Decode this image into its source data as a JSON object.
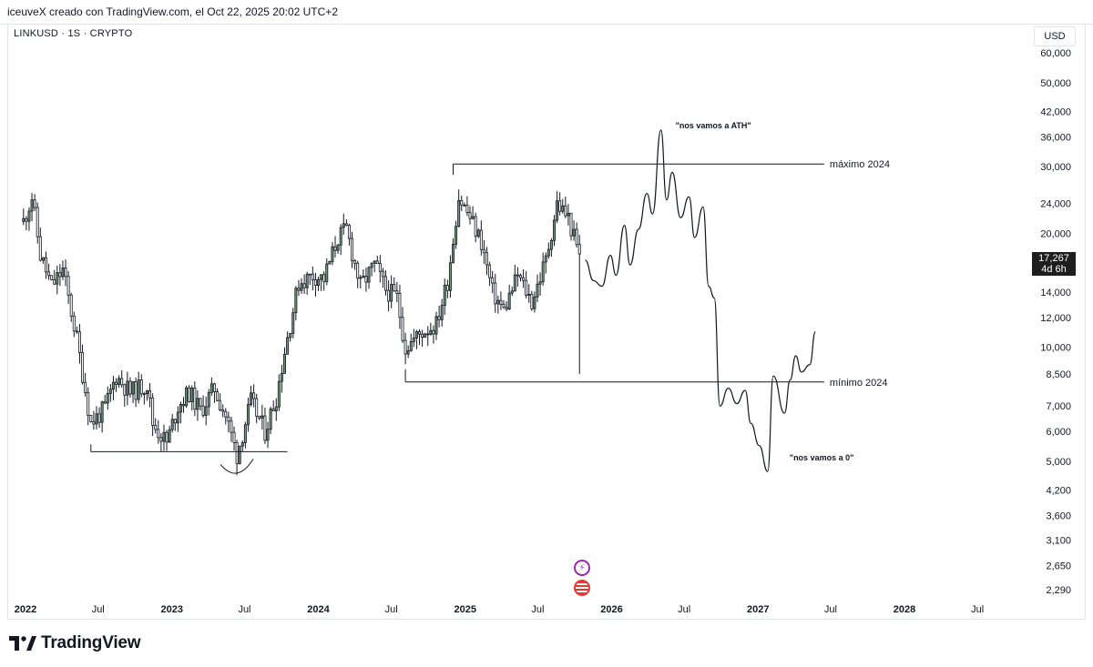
{
  "header": {
    "attribution": "iceuveX creado con TradingView.com, el Oct 22, 2025 20:02 UTC+2"
  },
  "symbol_label": "LINKUSD · 1S · CRYPTO",
  "currency_button": "USD",
  "current_price": {
    "value": "17,267",
    "countdown": "4d 6h"
  },
  "brand": {
    "name": "TradingView"
  },
  "colors": {
    "up_candle": "#6f9a78",
    "down_candle": "#ffffff",
    "wick": "#131722",
    "drawing": "#131722",
    "event_icon_purple": "#9c27b0",
    "event_icon_red": "#e53935"
  },
  "icons": [
    "lightning-event-icon",
    "us-flag-event-icon",
    "tradingview-logo-icon"
  ],
  "chart_data": {
    "type": "candlestick",
    "scale": "log",
    "y_ticks": [
      "60,000",
      "50,000",
      "42,000",
      "36,000",
      "30,000",
      "24,000",
      "20,000",
      "14,000",
      "12,000",
      "10,000",
      "8,500",
      "7,000",
      "6,000",
      "5,000",
      "4,200",
      "3,600",
      "3,100",
      "2,650",
      "2,290"
    ],
    "y_tick_values": [
      60000,
      50000,
      42000,
      36000,
      30000,
      24000,
      20000,
      14000,
      12000,
      10000,
      8500,
      7000,
      6000,
      5000,
      4200,
      3600,
      3100,
      2650,
      2290
    ],
    "x_ticks": [
      {
        "label": "2022",
        "bold": true,
        "date": "2022-01-01"
      },
      {
        "label": "Jul",
        "bold": false,
        "date": "2022-07-01"
      },
      {
        "label": "2023",
        "bold": true,
        "date": "2023-01-01"
      },
      {
        "label": "Jul",
        "bold": false,
        "date": "2023-07-01"
      },
      {
        "label": "2024",
        "bold": true,
        "date": "2024-01-01"
      },
      {
        "label": "Jul",
        "bold": false,
        "date": "2024-07-01"
      },
      {
        "label": "2025",
        "bold": true,
        "date": "2025-01-01"
      },
      {
        "label": "Jul",
        "bold": false,
        "date": "2025-07-01"
      },
      {
        "label": "2026",
        "bold": true,
        "date": "2026-01-01"
      },
      {
        "label": "Jul",
        "bold": false,
        "date": "2026-07-01"
      },
      {
        "label": "2027",
        "bold": true,
        "date": "2027-01-01"
      },
      {
        "label": "Jul",
        "bold": false,
        "date": "2027-07-01"
      },
      {
        "label": "2028",
        "bold": true,
        "date": "2028-01-01"
      },
      {
        "label": "Jul",
        "bold": false,
        "date": "2028-07-01"
      }
    ],
    "candle_anchors": [
      {
        "date": "2021-12-27",
        "price": 21500
      },
      {
        "date": "2022-01-17",
        "price": 25000
      },
      {
        "date": "2022-02-07",
        "price": 17500
      },
      {
        "date": "2022-03-07",
        "price": 14500
      },
      {
        "date": "2022-04-04",
        "price": 16000
      },
      {
        "date": "2022-05-09",
        "price": 10500
      },
      {
        "date": "2022-06-13",
        "price": 6300
      },
      {
        "date": "2022-07-18",
        "price": 6900
      },
      {
        "date": "2022-08-15",
        "price": 8400
      },
      {
        "date": "2022-09-19",
        "price": 7600
      },
      {
        "date": "2022-10-31",
        "price": 8000
      },
      {
        "date": "2022-11-14",
        "price": 6300
      },
      {
        "date": "2022-12-19",
        "price": 5600
      },
      {
        "date": "2023-01-16",
        "price": 7000
      },
      {
        "date": "2023-02-13",
        "price": 7600
      },
      {
        "date": "2023-03-13",
        "price": 6800
      },
      {
        "date": "2023-04-17",
        "price": 7800
      },
      {
        "date": "2023-05-15",
        "price": 6600
      },
      {
        "date": "2023-06-12",
        "price": 5200
      },
      {
        "date": "2023-07-17",
        "price": 7200
      },
      {
        "date": "2023-08-21",
        "price": 6000
      },
      {
        "date": "2023-09-18",
        "price": 7400
      },
      {
        "date": "2023-10-09",
        "price": 9800
      },
      {
        "date": "2023-11-13",
        "price": 14800
      },
      {
        "date": "2023-12-18",
        "price": 15500
      },
      {
        "date": "2024-01-15",
        "price": 15200
      },
      {
        "date": "2024-02-19",
        "price": 19500
      },
      {
        "date": "2024-03-11",
        "price": 20500
      },
      {
        "date": "2024-04-15",
        "price": 14500
      },
      {
        "date": "2024-05-20",
        "price": 16500
      },
      {
        "date": "2024-06-17",
        "price": 14200
      },
      {
        "date": "2024-07-15",
        "price": 13500
      },
      {
        "date": "2024-08-05",
        "price": 10000
      },
      {
        "date": "2024-09-16",
        "price": 11000
      },
      {
        "date": "2024-10-21",
        "price": 11500
      },
      {
        "date": "2024-11-18",
        "price": 15000
      },
      {
        "date": "2024-12-16",
        "price": 25000
      },
      {
        "date": "2025-01-13",
        "price": 22000
      },
      {
        "date": "2025-02-10",
        "price": 19000
      },
      {
        "date": "2025-03-10",
        "price": 14000
      },
      {
        "date": "2025-04-07",
        "price": 12500
      },
      {
        "date": "2025-05-12",
        "price": 15500
      },
      {
        "date": "2025-06-16",
        "price": 13200
      },
      {
        "date": "2025-07-21",
        "price": 17000
      },
      {
        "date": "2025-08-18",
        "price": 24000
      },
      {
        "date": "2025-09-15",
        "price": 22000
      },
      {
        "date": "2025-10-13",
        "price": 17267
      }
    ],
    "drawings": {
      "max_2024": {
        "label": "máximo 2024",
        "price": 30500,
        "from": "2024-12-02",
        "to": "2027-06-15"
      },
      "min_2024": {
        "label": "mínimo 2024",
        "price": 8100,
        "from": "2024-08-05",
        "to": "2027-06-15"
      },
      "low_2022_2023": {
        "price": 5300,
        "from": "2022-06-13",
        "to": "2023-10-16"
      },
      "ath_annotation": "\"nos vamos a ATH\"",
      "zero_annotation": "\"nos vamos a 0\""
    },
    "projection_path": [
      {
        "date": "2025-10-27",
        "price": 17000
      },
      {
        "date": "2025-11-17",
        "price": 15000
      },
      {
        "date": "2025-12-08",
        "price": 14500
      },
      {
        "date": "2025-12-29",
        "price": 17500
      },
      {
        "date": "2026-01-12",
        "price": 15500
      },
      {
        "date": "2026-02-02",
        "price": 21000
      },
      {
        "date": "2026-02-16",
        "price": 16500
      },
      {
        "date": "2026-03-09",
        "price": 20500
      },
      {
        "date": "2026-03-30",
        "price": 25500
      },
      {
        "date": "2026-04-13",
        "price": 22500
      },
      {
        "date": "2026-05-04",
        "price": 37500
      },
      {
        "date": "2026-05-18",
        "price": 24500
      },
      {
        "date": "2026-06-01",
        "price": 29000
      },
      {
        "date": "2026-06-22",
        "price": 22000
      },
      {
        "date": "2026-07-13",
        "price": 25000
      },
      {
        "date": "2026-07-27",
        "price": 19500
      },
      {
        "date": "2026-08-17",
        "price": 23500
      },
      {
        "date": "2026-08-31",
        "price": 14500
      },
      {
        "date": "2026-09-14",
        "price": 13500
      },
      {
        "date": "2026-09-28",
        "price": 7000
      },
      {
        "date": "2026-10-19",
        "price": 7800
      },
      {
        "date": "2026-11-09",
        "price": 7100
      },
      {
        "date": "2026-11-30",
        "price": 7700
      },
      {
        "date": "2026-12-14",
        "price": 6300
      },
      {
        "date": "2027-01-04",
        "price": 5500
      },
      {
        "date": "2027-01-25",
        "price": 4700
      },
      {
        "date": "2027-02-08",
        "price": 8400
      },
      {
        "date": "2027-03-08",
        "price": 6700
      },
      {
        "date": "2027-03-22",
        "price": 8200
      },
      {
        "date": "2027-04-05",
        "price": 9500
      },
      {
        "date": "2027-04-19",
        "price": 8600
      },
      {
        "date": "2027-05-10",
        "price": 9000
      },
      {
        "date": "2027-05-24",
        "price": 11000
      }
    ]
  }
}
